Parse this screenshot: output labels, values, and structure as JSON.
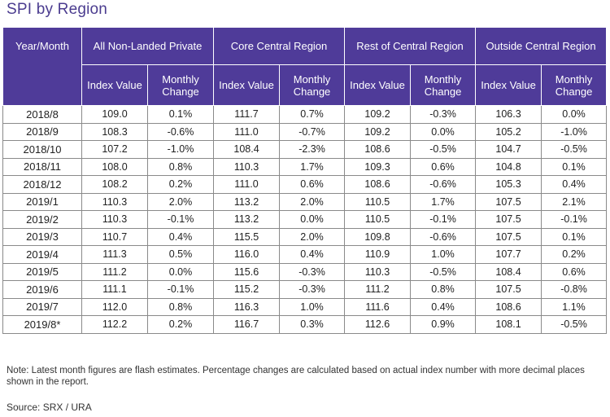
{
  "title": "SPI by Region",
  "header": {
    "year_month": "Year/Month",
    "groups": [
      "All Non-Landed Private",
      "Core Central Region",
      "Rest of Central Region",
      "Outside Central Region"
    ],
    "sub": [
      "Index Value",
      "Monthly Change"
    ]
  },
  "rows": [
    {
      "ym": "2018/8",
      "v": [
        "109.0",
        "0.1%",
        "111.7",
        "0.7%",
        "109.2",
        "-0.3%",
        "106.3",
        "0.0%"
      ]
    },
    {
      "ym": "2018/9",
      "v": [
        "108.3",
        "-0.6%",
        "111.0",
        "-0.7%",
        "109.2",
        "0.0%",
        "105.2",
        "-1.0%"
      ]
    },
    {
      "ym": "2018/10",
      "v": [
        "107.2",
        "-1.0%",
        "108.4",
        "-2.3%",
        "108.6",
        "-0.5%",
        "104.7",
        "-0.5%"
      ]
    },
    {
      "ym": "2018/11",
      "v": [
        "108.0",
        "0.8%",
        "110.3",
        "1.7%",
        "109.3",
        "0.6%",
        "104.8",
        "0.1%"
      ]
    },
    {
      "ym": "2018/12",
      "v": [
        "108.2",
        "0.2%",
        "111.0",
        "0.6%",
        "108.6",
        "-0.6%",
        "105.3",
        "0.4%"
      ]
    },
    {
      "ym": "2019/1",
      "v": [
        "110.3",
        "2.0%",
        "113.2",
        "2.0%",
        "110.5",
        "1.7%",
        "107.5",
        "2.1%"
      ]
    },
    {
      "ym": "2019/2",
      "v": [
        "110.3",
        "-0.1%",
        "113.2",
        "0.0%",
        "110.5",
        "-0.1%",
        "107.5",
        "-0.1%"
      ]
    },
    {
      "ym": "2019/3",
      "v": [
        "110.7",
        "0.4%",
        "115.5",
        "2.0%",
        "109.8",
        "-0.6%",
        "107.5",
        "0.1%"
      ]
    },
    {
      "ym": "2019/4",
      "v": [
        "111.3",
        "0.5%",
        "116.0",
        "0.4%",
        "110.9",
        "1.0%",
        "107.7",
        "0.2%"
      ]
    },
    {
      "ym": "2019/5",
      "v": [
        "111.2",
        "0.0%",
        "115.6",
        "-0.3%",
        "110.3",
        "-0.5%",
        "108.4",
        "0.6%"
      ]
    },
    {
      "ym": "2019/6",
      "v": [
        "111.1",
        "-0.1%",
        "115.2",
        "-0.3%",
        "111.2",
        "0.8%",
        "107.5",
        "-0.8%"
      ]
    },
    {
      "ym": "2019/7",
      "v": [
        "112.0",
        "0.8%",
        "116.3",
        "1.0%",
        "111.6",
        "0.4%",
        "108.6",
        "1.1%"
      ]
    },
    {
      "ym": "2019/8*",
      "v": [
        "112.2",
        "0.2%",
        "116.7",
        "0.3%",
        "112.6",
        "0.9%",
        "108.1",
        "-0.5%"
      ]
    }
  ],
  "note": "Note: Latest month figures are flash estimates. Percentage changes are calculated based on actual index number with more decimal places shown in the report.",
  "source": "Source: SRX / URA"
}
